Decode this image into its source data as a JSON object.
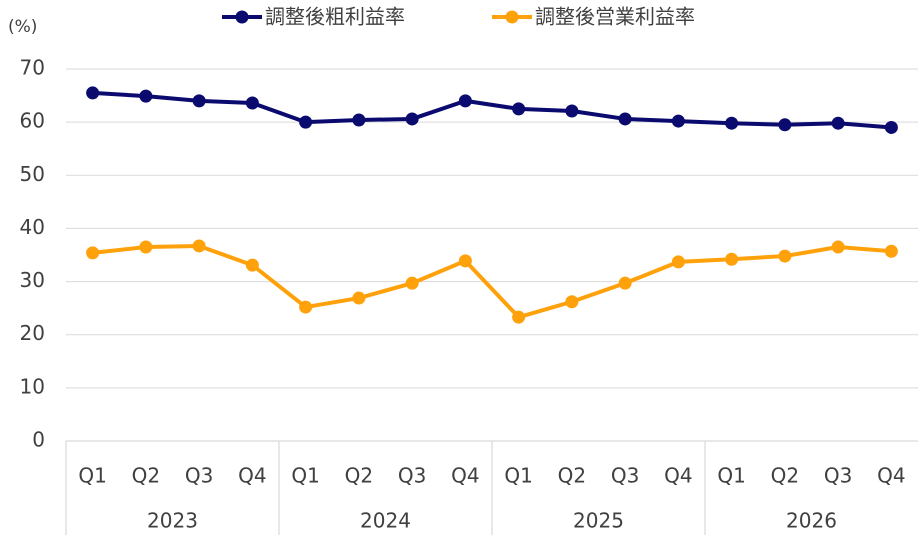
{
  "chart_data": {
    "type": "line",
    "y_label": "(%)",
    "groups": [
      {
        "name": "2023",
        "categories": [
          "Q1",
          "Q2",
          "Q3",
          "Q4"
        ]
      },
      {
        "name": "2024",
        "categories": [
          "Q1",
          "Q2",
          "Q3",
          "Q4"
        ]
      },
      {
        "name": "2025",
        "categories": [
          "Q1",
          "Q2",
          "Q3",
          "Q4"
        ]
      },
      {
        "name": "2026",
        "categories": [
          "Q1",
          "Q2",
          "Q3",
          "Q4"
        ]
      }
    ],
    "series": [
      {
        "name": "調整後粗利益率",
        "color": "#0b0b6f",
        "values": [
          65.5,
          64.9,
          64.0,
          63.6,
          60.0,
          60.4,
          60.6,
          64.0,
          62.5,
          62.1,
          60.6,
          60.2,
          59.8,
          59.5,
          59.8,
          59.0
        ]
      },
      {
        "name": "調整後営業利益率",
        "color": "#ffa10a",
        "values": [
          35.4,
          36.5,
          36.7,
          33.1,
          25.2,
          26.9,
          29.7,
          33.9,
          23.3,
          26.2,
          29.7,
          33.7,
          34.2,
          34.8,
          36.5,
          35.7
        ]
      }
    ],
    "ylim": [
      0,
      70
    ],
    "yticks": [
      0,
      10,
      20,
      30,
      40,
      50,
      60,
      70
    ],
    "grid": true,
    "legend": "top"
  }
}
